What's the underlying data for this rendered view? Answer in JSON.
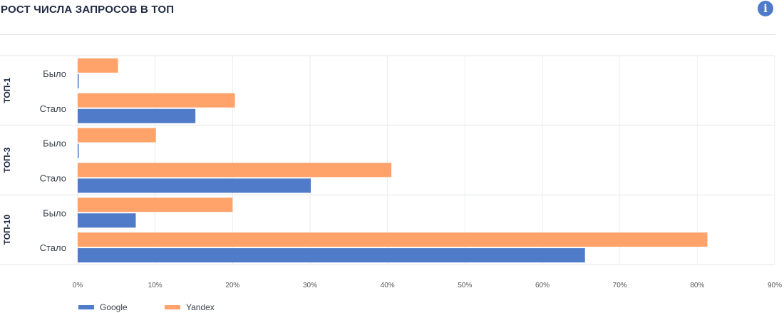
{
  "title": "РОСТ ЧИСЛА ЗАПРОСОВ В ТОП",
  "icon": "info-icon",
  "chart_data": {
    "type": "bar",
    "orientation": "horizontal",
    "groups": [
      {
        "label": "ТОП-1",
        "rows": [
          {
            "label": "Было",
            "google": 0.1,
            "yandex": 5.2
          },
          {
            "label": "Стало",
            "google": 15.2,
            "yandex": 20.3
          }
        ]
      },
      {
        "label": "ТОП-3",
        "rows": [
          {
            "label": "Было",
            "google": 0.1,
            "yandex": 10.1
          },
          {
            "label": "Стало",
            "google": 30.1,
            "yandex": 40.5
          }
        ]
      },
      {
        "label": "ТОП-10",
        "rows": [
          {
            "label": "Было",
            "google": 7.5,
            "yandex": 20.0
          },
          {
            "label": "Стало",
            "google": 65.5,
            "yandex": 81.3
          }
        ]
      }
    ],
    "xticks": [
      "0%",
      "10%",
      "20%",
      "30%",
      "40%",
      "50%",
      "60%",
      "70%",
      "80%",
      "90%"
    ],
    "xlim": [
      0,
      90
    ],
    "series": [
      {
        "key": "google",
        "name": "Google",
        "color": "#4f7bc9"
      },
      {
        "key": "yandex",
        "name": "Yandex",
        "color": "#ffa36b"
      }
    ],
    "grid": true,
    "legend": "bottom-left"
  }
}
